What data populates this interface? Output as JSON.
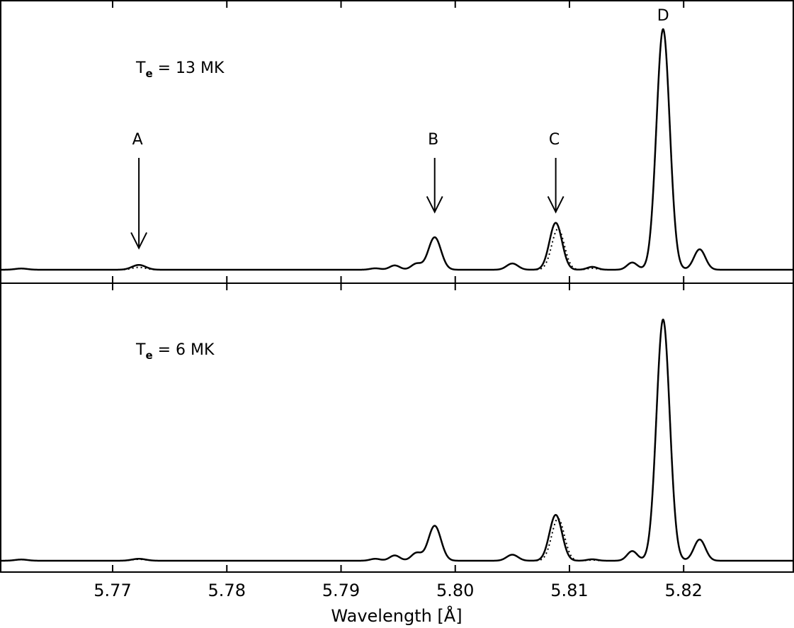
{
  "chart_data": {
    "type": "line",
    "xlabel": "Wavelength [Å]",
    "xlim": [
      5.7602,
      5.8296
    ],
    "xticks": [
      5.77,
      5.78,
      5.79,
      5.8,
      5.81,
      5.82
    ],
    "xtick_labels": [
      "5.77",
      "5.78",
      "5.79",
      "5.80",
      "5.81",
      "5.82"
    ],
    "panels": [
      {
        "label": "T",
        "label_sub": "e",
        "label_rest": " = 13 MK",
        "ylim": [
          0,
          1.08
        ],
        "baseline": 0,
        "solid_peaks": [
          {
            "x": 5.762,
            "amp": 0.005,
            "w": 0.00055
          },
          {
            "x": 5.7723,
            "amp": 0.02,
            "w": 0.0006
          },
          {
            "x": 5.793,
            "amp": 0.006,
            "w": 0.00045
          },
          {
            "x": 5.7947,
            "amp": 0.018,
            "w": 0.00045
          },
          {
            "x": 5.7966,
            "amp": 0.025,
            "w": 0.00045
          },
          {
            "x": 5.7982,
            "amp": 0.135,
            "w": 0.00055
          },
          {
            "x": 5.805,
            "amp": 0.026,
            "w": 0.0005
          },
          {
            "x": 5.8088,
            "amp": 0.195,
            "w": 0.00055
          },
          {
            "x": 5.812,
            "amp": 0.012,
            "w": 0.00045
          },
          {
            "x": 5.8155,
            "amp": 0.03,
            "w": 0.00045
          },
          {
            "x": 5.8182,
            "amp": 1.0,
            "w": 0.00058
          },
          {
            "x": 5.8214,
            "amp": 0.085,
            "w": 0.0005
          }
        ],
        "dotted_peaks": [
          {
            "x": 5.762,
            "amp": 0.005,
            "w": 0.00055
          },
          {
            "x": 5.7723,
            "amp": 0.01,
            "w": 0.0006
          },
          {
            "x": 5.793,
            "amp": 0.006,
            "w": 0.00045
          },
          {
            "x": 5.7947,
            "amp": 0.018,
            "w": 0.00045
          },
          {
            "x": 5.7966,
            "amp": 0.025,
            "w": 0.00045
          },
          {
            "x": 5.7982,
            "amp": 0.135,
            "w": 0.00055
          },
          {
            "x": 5.805,
            "amp": 0.026,
            "w": 0.0005
          },
          {
            "x": 5.809,
            "amp": 0.17,
            "w": 0.00055
          },
          {
            "x": 5.812,
            "amp": 0.006,
            "w": 0.00045
          },
          {
            "x": 5.8155,
            "amp": 0.03,
            "w": 0.00045
          },
          {
            "x": 5.8182,
            "amp": 1.0,
            "w": 0.00058
          },
          {
            "x": 5.8214,
            "amp": 0.085,
            "w": 0.0005
          }
        ],
        "annotations": [
          {
            "text": "A",
            "x": 5.7723,
            "level_top": 0.465,
            "level_tip": 0.09
          },
          {
            "text": "B",
            "x": 5.7982,
            "level_top": 0.465,
            "level_tip": 0.24
          },
          {
            "text": "C",
            "x": 5.8088,
            "level_top": 0.465,
            "level_tip": 0.24
          },
          {
            "text": "D",
            "x": 5.8182,
            "level_top": null,
            "level_tip": null
          }
        ]
      },
      {
        "label": "T",
        "label_sub": "e",
        "label_rest": " = 6 MK",
        "ylim": [
          0,
          1.08
        ],
        "baseline": 0,
        "solid_peaks": [
          {
            "x": 5.762,
            "amp": 0.005,
            "w": 0.00055
          },
          {
            "x": 5.7723,
            "amp": 0.008,
            "w": 0.0006
          },
          {
            "x": 5.793,
            "amp": 0.008,
            "w": 0.00045
          },
          {
            "x": 5.7947,
            "amp": 0.022,
            "w": 0.00045
          },
          {
            "x": 5.7966,
            "amp": 0.032,
            "w": 0.00045
          },
          {
            "x": 5.7982,
            "amp": 0.145,
            "w": 0.00055
          },
          {
            "x": 5.805,
            "amp": 0.025,
            "w": 0.0005
          },
          {
            "x": 5.8088,
            "amp": 0.19,
            "w": 0.00055
          },
          {
            "x": 5.812,
            "amp": 0.006,
            "w": 0.00045
          },
          {
            "x": 5.8155,
            "amp": 0.04,
            "w": 0.00045
          },
          {
            "x": 5.8182,
            "amp": 1.0,
            "w": 0.00058
          },
          {
            "x": 5.8214,
            "amp": 0.088,
            "w": 0.0005
          }
        ],
        "dotted_peaks": [
          {
            "x": 5.762,
            "amp": 0.005,
            "w": 0.00055
          },
          {
            "x": 5.7723,
            "amp": 0.006,
            "w": 0.0006
          },
          {
            "x": 5.793,
            "amp": 0.008,
            "w": 0.00045
          },
          {
            "x": 5.7947,
            "amp": 0.022,
            "w": 0.00045
          },
          {
            "x": 5.7966,
            "amp": 0.032,
            "w": 0.00045
          },
          {
            "x": 5.7982,
            "amp": 0.145,
            "w": 0.00055
          },
          {
            "x": 5.805,
            "amp": 0.025,
            "w": 0.0005
          },
          {
            "x": 5.809,
            "amp": 0.175,
            "w": 0.00055
          },
          {
            "x": 5.812,
            "amp": 0.003,
            "w": 0.00045
          },
          {
            "x": 5.8155,
            "amp": 0.04,
            "w": 0.00045
          },
          {
            "x": 5.8182,
            "amp": 1.0,
            "w": 0.00058
          },
          {
            "x": 5.8214,
            "amp": 0.088,
            "w": 0.0005
          }
        ],
        "annotations": []
      }
    ]
  }
}
